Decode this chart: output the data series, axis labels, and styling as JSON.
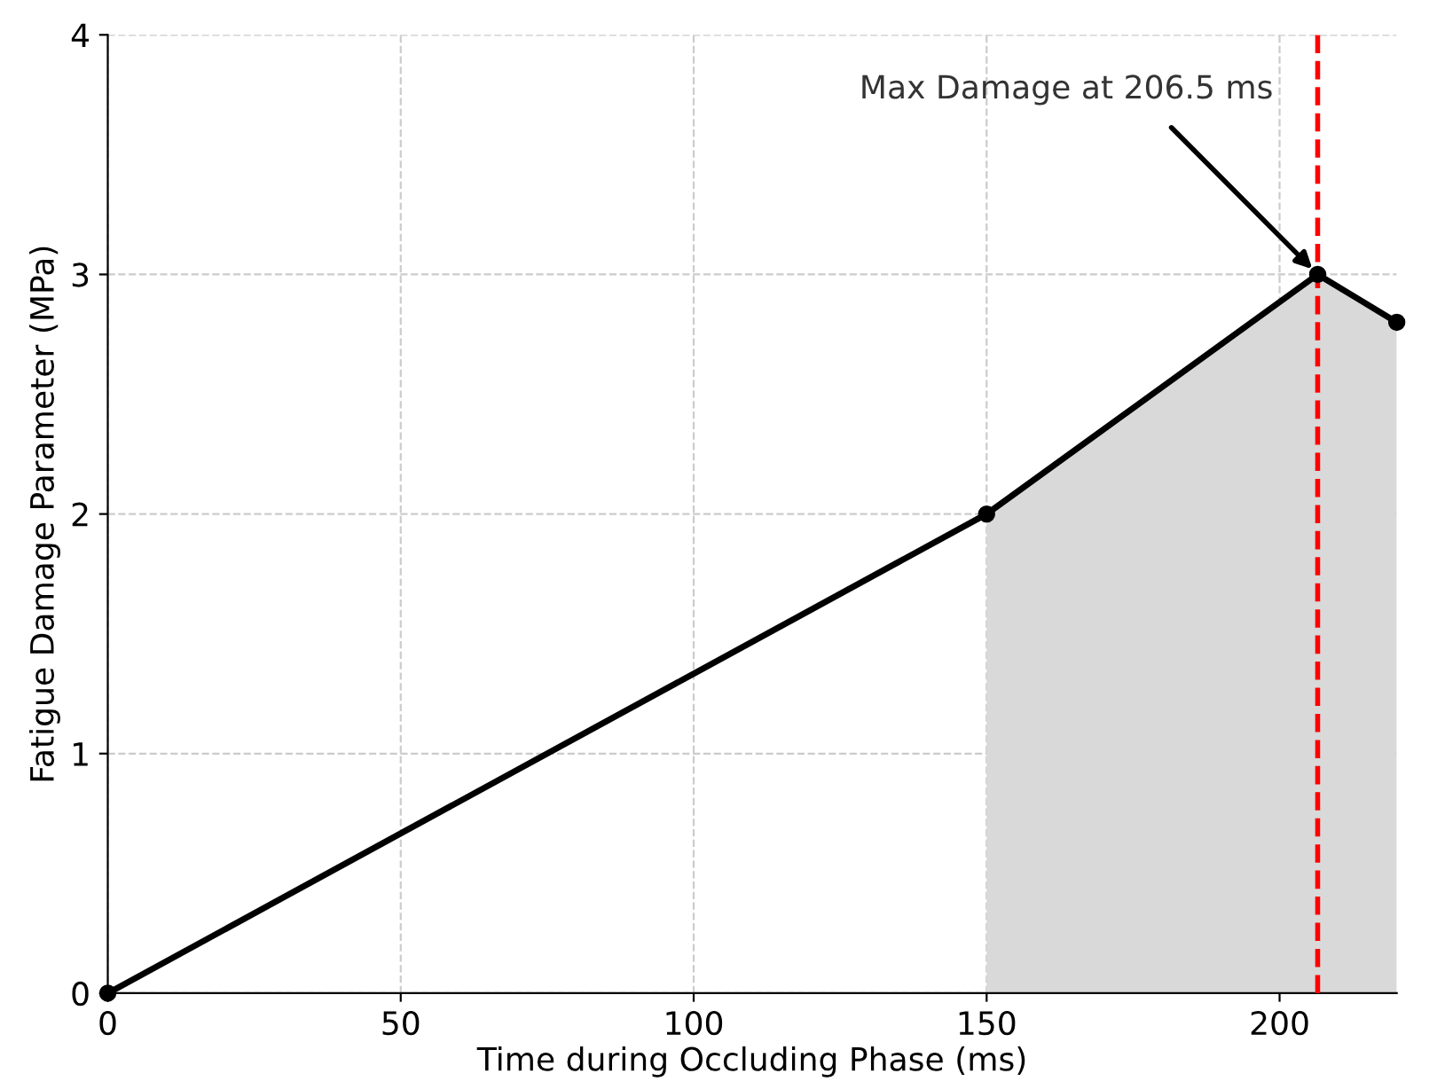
{
  "chart_data": {
    "type": "line",
    "xlabel": "Time during Occluding Phase (ms)",
    "ylabel": "Fatigue Damage Parameter (MPa)",
    "series": [
      {
        "type": "area",
        "color": "#d9d9d9",
        "x": [
          150,
          206.5,
          220
        ],
        "values": [
          2,
          3,
          2.8
        ]
      },
      {
        "color": "#000000",
        "x": [
          0,
          150,
          206.5,
          220
        ],
        "values": [
          0,
          2,
          3,
          2.8
        ],
        "marker": "circle",
        "line_style": "solid"
      }
    ],
    "xlim": [
      0,
      220
    ],
    "ylim": [
      0,
      4
    ],
    "xticks": [
      0,
      50,
      100,
      150,
      200
    ],
    "yticks": [
      0,
      1,
      2,
      3,
      4
    ],
    "ref_lines": [
      {
        "axis": "x",
        "value": 206.5,
        "color": "#ff0000",
        "line_style": "dashed"
      }
    ],
    "annotations": [
      {
        "text": "Max Damage at 206.5 ms",
        "x": 206.5,
        "y": 3
      }
    ],
    "grid": true,
    "legend": false
  }
}
